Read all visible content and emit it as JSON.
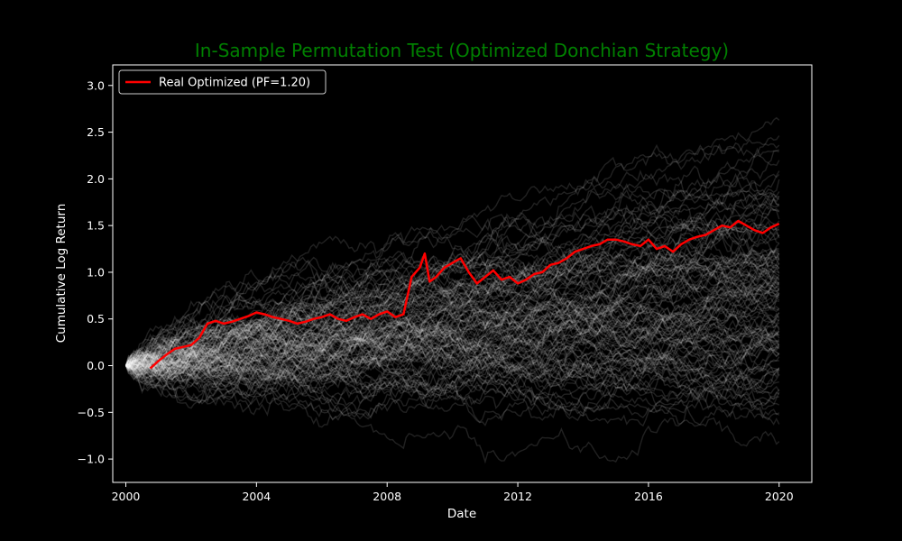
{
  "chart_data": {
    "type": "line",
    "title": "In-Sample Permutation Test (Optimized Donchian Strategy)",
    "xlabel": "Date",
    "ylabel": "Cumulative Log Return",
    "xlim": [
      1999.6,
      2021.0
    ],
    "ylim": [
      -1.25,
      3.22
    ],
    "x_ticks": [
      2000,
      2004,
      2008,
      2012,
      2016,
      2020
    ],
    "x_tick_labels": [
      "2000",
      "2004",
      "2008",
      "2012",
      "2016",
      "2020"
    ],
    "y_ticks": [
      -1.0,
      -0.5,
      0.0,
      0.5,
      1.0,
      1.5,
      2.0,
      2.5,
      3.0
    ],
    "y_tick_labels": [
      "−1.0",
      "−0.5",
      "0.0",
      "0.5",
      "1.0",
      "1.5",
      "2.0",
      "2.5",
      "3.0"
    ],
    "grid": false,
    "legend_position": "top-left",
    "colors": {
      "background": "#000000",
      "title": "#008000",
      "real_series": "#ff0000",
      "permutation_series": "#ffffff",
      "axes": "#ffffff"
    },
    "series": [
      {
        "name": "Real Optimized (PF=1.20)",
        "x": [
          2000.75,
          2001.0,
          2001.25,
          2001.5,
          2001.75,
          2002.0,
          2002.25,
          2002.5,
          2002.75,
          2003.0,
          2003.25,
          2003.5,
          2003.75,
          2004.0,
          2004.25,
          2004.5,
          2004.75,
          2005.0,
          2005.25,
          2005.5,
          2005.75,
          2006.0,
          2006.25,
          2006.5,
          2006.75,
          2007.0,
          2007.25,
          2007.5,
          2007.75,
          2008.0,
          2008.25,
          2008.5,
          2008.75,
          2009.0,
          2009.15,
          2009.3,
          2009.5,
          2009.75,
          2010.0,
          2010.25,
          2010.5,
          2010.75,
          2011.0,
          2011.25,
          2011.5,
          2011.75,
          2012.0,
          2012.25,
          2012.5,
          2012.75,
          2013.0,
          2013.25,
          2013.5,
          2013.75,
          2014.0,
          2014.25,
          2014.5,
          2014.75,
          2015.0,
          2015.25,
          2015.5,
          2015.75,
          2016.0,
          2016.25,
          2016.5,
          2016.75,
          2017.0,
          2017.25,
          2017.5,
          2017.75,
          2018.0,
          2018.25,
          2018.5,
          2018.75,
          2019.0,
          2019.25,
          2019.5,
          2019.75,
          2020.0
        ],
        "values": [
          -0.03,
          0.05,
          0.12,
          0.18,
          0.2,
          0.22,
          0.3,
          0.45,
          0.48,
          0.45,
          0.47,
          0.5,
          0.53,
          0.57,
          0.55,
          0.52,
          0.5,
          0.48,
          0.45,
          0.47,
          0.5,
          0.52,
          0.55,
          0.5,
          0.48,
          0.52,
          0.55,
          0.5,
          0.55,
          0.58,
          0.52,
          0.55,
          0.95,
          1.05,
          1.2,
          0.9,
          0.95,
          1.05,
          1.1,
          1.15,
          1.0,
          0.88,
          0.95,
          1.02,
          0.92,
          0.95,
          0.88,
          0.92,
          0.98,
          1.0,
          1.08,
          1.1,
          1.15,
          1.22,
          1.25,
          1.28,
          1.3,
          1.35,
          1.35,
          1.33,
          1.3,
          1.28,
          1.35,
          1.25,
          1.28,
          1.22,
          1.3,
          1.35,
          1.38,
          1.4,
          1.45,
          1.5,
          1.48,
          1.55,
          1.5,
          1.45,
          1.42,
          1.48,
          1.52
        ]
      }
    ],
    "permutations": {
      "count": 120,
      "x_start": 2000.0,
      "x_end": 2020.0,
      "value_range": [
        -1.05,
        3.0
      ]
    }
  }
}
